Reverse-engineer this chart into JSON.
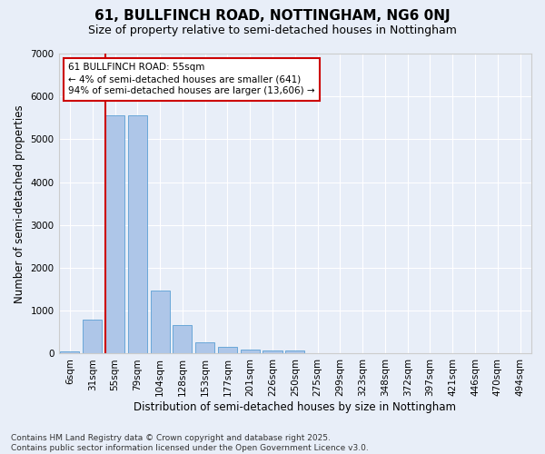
{
  "title": "61, BULLFINCH ROAD, NOTTINGHAM, NG6 0NJ",
  "subtitle": "Size of property relative to semi-detached houses in Nottingham",
  "xlabel": "Distribution of semi-detached houses by size in Nottingham",
  "ylabel": "Number of semi-detached properties",
  "footer_line1": "Contains HM Land Registry data © Crown copyright and database right 2025.",
  "footer_line2": "Contains public sector information licensed under the Open Government Licence v3.0.",
  "annotation_title": "61 BULLFINCH ROAD: 55sqm",
  "annotation_line2": "← 4% of semi-detached houses are smaller (641)",
  "annotation_line3": "94% of semi-detached houses are larger (13,606) →",
  "categories": [
    "6sqm",
    "31sqm",
    "55sqm",
    "79sqm",
    "104sqm",
    "128sqm",
    "153sqm",
    "177sqm",
    "201sqm",
    "226sqm",
    "250sqm",
    "275sqm",
    "299sqm",
    "323sqm",
    "348sqm",
    "372sqm",
    "397sqm",
    "421sqm",
    "446sqm",
    "470sqm",
    "494sqm"
  ],
  "values": [
    50,
    800,
    5550,
    5550,
    1480,
    660,
    270,
    150,
    100,
    70,
    70,
    0,
    0,
    0,
    0,
    0,
    0,
    0,
    0,
    0,
    0
  ],
  "bar_color": "#aec6e8",
  "bar_edge_color": "#5a9fd4",
  "highlight_bar_index": 2,
  "red_line_color": "#cc0000",
  "annotation_box_color": "#cc0000",
  "background_color": "#e8eef8",
  "ylim": [
    0,
    7000
  ],
  "yticks": [
    0,
    1000,
    2000,
    3000,
    4000,
    5000,
    6000,
    7000
  ],
  "grid_color": "#ffffff",
  "title_fontsize": 11,
  "subtitle_fontsize": 9,
  "axis_fontsize": 8.5,
  "tick_fontsize": 7.5,
  "footer_fontsize": 6.5
}
